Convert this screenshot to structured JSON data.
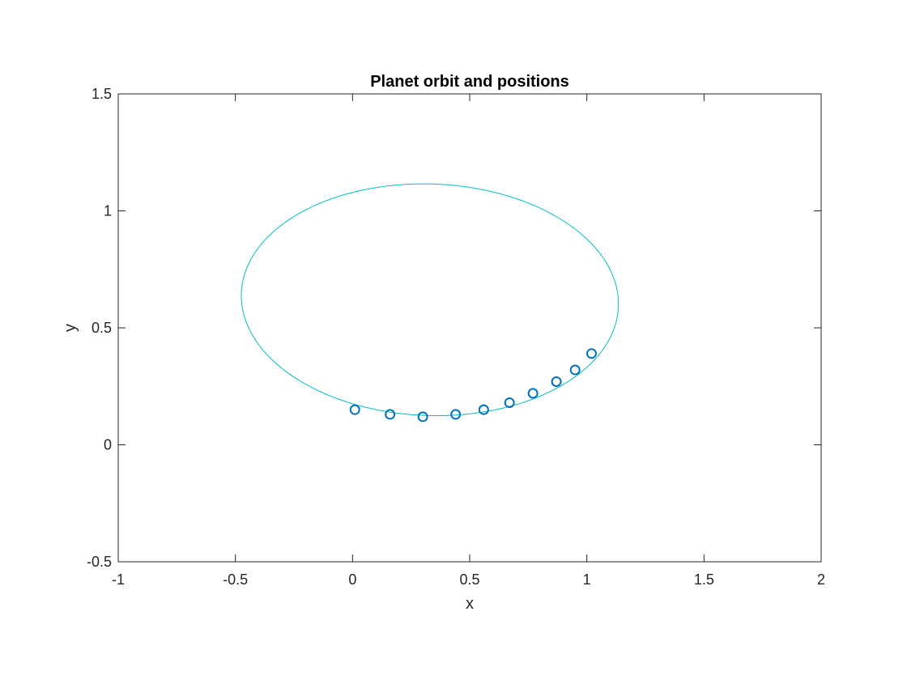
{
  "chart_data": {
    "type": "line",
    "title": "Planet orbit and positions",
    "xlabel": "x",
    "ylabel": "y",
    "xlim": [
      -1,
      2
    ],
    "ylim": [
      -0.5,
      1.5
    ],
    "xticks": [
      -1,
      -0.5,
      0,
      0.5,
      1,
      1.5,
      2
    ],
    "xtick_labels": [
      "-1",
      "-0.5",
      "0",
      "0.5",
      "1",
      "1.5",
      "2"
    ],
    "yticks": [
      -0.5,
      0,
      0.5,
      1,
      1.5
    ],
    "ytick_labels": [
      "-0.5",
      "0",
      "0.5",
      "1",
      "1.5"
    ],
    "grid": false,
    "series": [
      {
        "kind": "line",
        "color": "#00BFBF",
        "shape": "ellipse",
        "center": [
          0.33,
          0.62
        ],
        "semi_axes": [
          0.805,
          0.495
        ],
        "rotation_deg": -2
      },
      {
        "kind": "scatter",
        "marker": "circle",
        "color": "#0072BD",
        "x": [
          0.01,
          0.16,
          0.3,
          0.44,
          0.56,
          0.67,
          0.77,
          0.87,
          0.95,
          1.02
        ],
        "y": [
          0.15,
          0.13,
          0.12,
          0.13,
          0.15,
          0.18,
          0.22,
          0.27,
          0.32,
          0.39
        ]
      }
    ]
  }
}
